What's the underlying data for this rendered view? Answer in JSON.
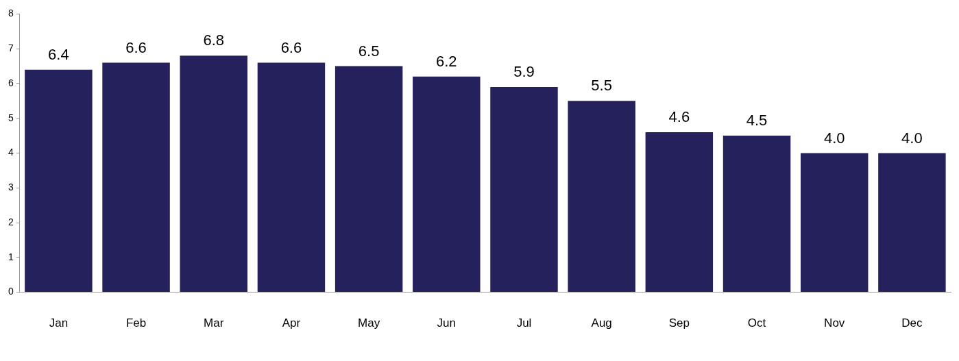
{
  "chart_data": {
    "type": "bar",
    "categories": [
      "Jan",
      "Feb",
      "Mar",
      "Apr",
      "May",
      "Jun",
      "Jul",
      "Aug",
      "Sep",
      "Oct",
      "Nov",
      "Dec"
    ],
    "values": [
      6.4,
      6.6,
      6.8,
      6.6,
      6.5,
      6.2,
      5.9,
      5.5,
      4.6,
      4.5,
      4.0,
      4.0
    ],
    "value_labels": [
      "6.4",
      "6.6",
      "6.8",
      "6.6",
      "6.5",
      "6.2",
      "5.9",
      "5.5",
      "4.6",
      "4.5",
      "4.0",
      "4.0"
    ],
    "color": "#25215d",
    "ylim": [
      0,
      8
    ],
    "yticks": [
      0,
      1,
      2,
      3,
      4,
      5,
      6,
      7,
      8
    ],
    "grid": false,
    "legend": false
  }
}
